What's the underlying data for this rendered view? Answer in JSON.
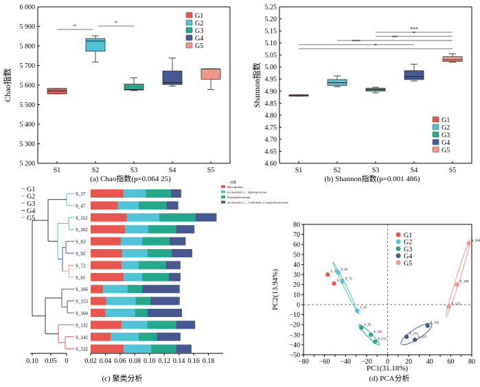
{
  "panel_captions": {
    "a": "(a) Chao指数(p=0.064 25)",
    "b": "(b) Shannon指数(p=0.001 486)",
    "c": "(c) 聚类分析",
    "d": "(d) PCA分析"
  },
  "colors": {
    "G1": "#e8564f",
    "G2": "#50c3d9",
    "G3": "#23a88c",
    "G4": "#46588f",
    "G5": "#f3968a"
  },
  "chart_data": [
    {
      "id": "chao",
      "type": "box",
      "ylabel": "Chao指数",
      "categories": [
        "S1",
        "S2",
        "S3",
        "S4",
        "S5"
      ],
      "yticks": [
        "5 200",
        "5 300",
        "5 400",
        "5 500",
        "5 600",
        "5 700",
        "5 800",
        "5 900",
        "6 000"
      ],
      "ylim": [
        5200,
        6000
      ],
      "legend": [
        "G1",
        "G2",
        "G3",
        "G4",
        "G5"
      ],
      "boxes": [
        {
          "min": 5555,
          "q1": 5555,
          "median": 5570,
          "q3": 5583,
          "max": 5583
        },
        {
          "min": 5718,
          "q1": 5773,
          "median": 5825,
          "q3": 5838,
          "max": 5852
        },
        {
          "min": 5572,
          "q1": 5575,
          "median": 5577,
          "q3": 5605,
          "max": 5637
        },
        {
          "min": 5595,
          "q1": 5603,
          "median": 5612,
          "q3": 5672,
          "max": 5738
        },
        {
          "min": 5577,
          "q1": 5630,
          "median": 5683,
          "q3": 5683,
          "max": 5683
        }
      ],
      "significance": [
        {
          "from": "S1",
          "to": "S2",
          "label": "*"
        },
        {
          "from": "S2",
          "to": "S3",
          "label": "*"
        }
      ]
    },
    {
      "id": "shannon",
      "type": "box",
      "ylabel": "Shannon指数",
      "categories": [
        "S1",
        "S2",
        "S3",
        "S4",
        "S5"
      ],
      "yticks": [
        "4.60",
        "4.65",
        "4.70",
        "4.75",
        "4.80",
        "4.85",
        "4.90",
        "4.95",
        "5.00",
        "5.05",
        "5.10",
        "5.15",
        "5.20",
        "5.25"
      ],
      "ylim": [
        4.6,
        5.25
      ],
      "legend": [
        "G1",
        "G2",
        "G3",
        "G4",
        "G5"
      ],
      "boxes": [
        {
          "min": 4.879,
          "q1": 4.879,
          "median": 4.882,
          "q3": 4.885,
          "max": 4.885
        },
        {
          "min": 4.918,
          "q1": 4.923,
          "median": 4.935,
          "q3": 4.948,
          "max": 4.963
        },
        {
          "min": 4.893,
          "q1": 4.9,
          "median": 4.906,
          "q3": 4.912,
          "max": 4.916
        },
        {
          "min": 4.942,
          "q1": 4.948,
          "median": 4.96,
          "q3": 4.985,
          "max": 5.012
        },
        {
          "min": 5.02,
          "q1": 5.023,
          "median": 5.03,
          "q3": 5.043,
          "max": 5.055
        }
      ],
      "significance": [
        {
          "from": "S3",
          "to": "S5",
          "label": "***"
        },
        {
          "from": "S3",
          "to": "S5",
          "label": "*"
        },
        {
          "from": "S2",
          "to": "S5",
          "label": "**"
        },
        {
          "from": "S1",
          "to": "S4",
          "label": "***"
        },
        {
          "from": "S1",
          "to": "S5",
          "label": "*"
        }
      ]
    },
    {
      "id": "cluster",
      "type": "bar",
      "stacked": true,
      "samples": [
        "S_37",
        "S_47",
        "S_112",
        "S_102",
        "S_83",
        "S_92",
        "S_72",
        "S_61",
        "S_166",
        "S_153",
        "S_160",
        "S_132",
        "S_142",
        "S_122"
      ],
      "groups": [
        "G1",
        "G1",
        "G2",
        "G2",
        "G3",
        "G3",
        "G4",
        "G4",
        "G5",
        "G5",
        "G5",
        "G1",
        "G1",
        "G1"
      ],
      "xticks": [
        "0.10",
        "0.05",
        "0",
        "0.02",
        "0.04",
        "0.06",
        "0.08",
        "0.10",
        "0.12",
        "0.14",
        "0.16",
        "0.18"
      ],
      "xlim": [
        0,
        0.18
      ],
      "tree_legend": [
        "G1",
        "G2",
        "G3",
        "G4",
        "G5"
      ],
      "legend_title": "分类",
      "series": [
        {
          "name": "Micropruina",
          "values": [
            0.045,
            0.037,
            0.049,
            0.047,
            0.041,
            0.043,
            0.042,
            0.045,
            0.017,
            0.021,
            0.02,
            0.042,
            0.027,
            0.045
          ]
        },
        {
          "name": "unclassified_f__Saprospiraceae",
          "values": [
            0.03,
            0.028,
            0.044,
            0.031,
            0.029,
            0.034,
            0.023,
            0.025,
            0.033,
            0.04,
            0.04,
            0.035,
            0.038,
            0.037
          ]
        },
        {
          "name": "Propionibacterium",
          "values": [
            0.034,
            0.038,
            0.049,
            0.038,
            0.037,
            0.033,
            0.037,
            0.036,
            0.02,
            0.02,
            0.017,
            0.039,
            0.025,
            0.034
          ]
        },
        {
          "name": "unclassified_f__Candidatus_Competibacteraceae",
          "values": [
            0.014,
            0.016,
            0.029,
            0.025,
            0.022,
            0.028,
            0.02,
            0.016,
            0.051,
            0.04,
            0.047,
            0.026,
            0.032,
            0.021
          ]
        }
      ]
    },
    {
      "id": "pca",
      "type": "scatter",
      "xlabel": "PC1(31.18%)",
      "ylabel": "PC2(13.94%)",
      "xticks": [
        "−80",
        "−70",
        "−60",
        "−50",
        "−40",
        "−30",
        "−20",
        "−10",
        "0",
        "10",
        "20",
        "30",
        "40",
        "50",
        "60",
        "70",
        "80"
      ],
      "yticks": [
        "−50",
        "−40",
        "−30",
        "−20",
        "−10",
        "0",
        "10",
        "20",
        "30",
        "40",
        "50",
        "60",
        "70",
        "80"
      ],
      "xlim": [
        -80,
        80
      ],
      "ylim": [
        -50,
        80
      ],
      "legend": [
        "G1",
        "G2",
        "G3",
        "G4",
        "G5"
      ],
      "points": [
        {
          "label": "S_37",
          "group": "G1",
          "x": -57,
          "y": 30
        },
        {
          "label": "S_47",
          "group": "G1",
          "x": -51,
          "y": 21
        },
        {
          "label": "S_61",
          "group": "G2",
          "x": -47,
          "y": 32
        },
        {
          "label": "S_72",
          "group": "G2",
          "x": -43,
          "y": 23
        },
        {
          "label": "S_83",
          "group": "G2",
          "x": -29,
          "y": -6
        },
        {
          "label": "S_92",
          "group": "G3",
          "x": -25,
          "y": -23
        },
        {
          "label": "S_102",
          "group": "G3",
          "x": -16,
          "y": -30
        },
        {
          "label": "S_112",
          "group": "G3",
          "x": -12,
          "y": -37
        },
        {
          "label": "S_132",
          "group": "G4",
          "x": 18,
          "y": -32
        },
        {
          "label": "S_122",
          "group": "G4",
          "x": 26,
          "y": -35
        },
        {
          "label": "S_142",
          "group": "G4",
          "x": 38,
          "y": -21
        },
        {
          "label": "S_153",
          "group": "G5",
          "x": 58,
          "y": -2
        },
        {
          "label": "S_160",
          "group": "G5",
          "x": 66,
          "y": 20
        },
        {
          "label": "S_166",
          "group": "G5",
          "x": 77,
          "y": 61
        }
      ]
    }
  ]
}
